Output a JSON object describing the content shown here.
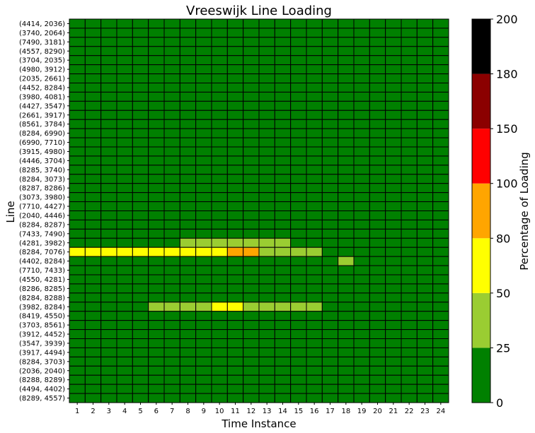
{
  "chart_data": {
    "type": "heatmap",
    "title": "Vreeswijk Line Loading",
    "xlabel": "Time Instance",
    "ylabel": "Line",
    "x_categories": [
      "1",
      "2",
      "3",
      "4",
      "5",
      "6",
      "7",
      "8",
      "9",
      "10",
      "11",
      "12",
      "13",
      "14",
      "15",
      "16",
      "17",
      "18",
      "19",
      "20",
      "21",
      "22",
      "23",
      "24"
    ],
    "y_categories": [
      "(4414, 2036)",
      "(3740, 2064)",
      "(7490, 3181)",
      "(4557, 8290)",
      "(3704, 2035)",
      "(4980, 3912)",
      "(2035, 2661)",
      "(4452, 8284)",
      "(3980, 4081)",
      "(4427, 3547)",
      "(2661, 3917)",
      "(8561, 3784)",
      "(8284, 6990)",
      "(6990, 7710)",
      "(3915, 4980)",
      "(4446, 3704)",
      "(8285, 3740)",
      "(8284, 3073)",
      "(8287, 8286)",
      "(3073, 3980)",
      "(7710, 4427)",
      "(2040, 4446)",
      "(8284, 8287)",
      "(7433, 7490)",
      "(4281, 3982)",
      "(8284, 7076)",
      "(4402, 8284)",
      "(7710, 7433)",
      "(4550, 4281)",
      "(8286, 8285)",
      "(8284, 8288)",
      "(3982, 8284)",
      "(8419, 4550)",
      "(3703, 8561)",
      "(3912, 4452)",
      "(3547, 3939)",
      "(3917, 4494)",
      "(8284, 3703)",
      "(2036, 2040)",
      "(8288, 8289)",
      "(4494, 4402)",
      "(8289, 4557)"
    ],
    "default_value": 10,
    "highlighted_cells": [
      {
        "line": "(4281, 3982)",
        "values": {
          "8": 35,
          "9": 35,
          "10": 35,
          "11": 35,
          "12": 35,
          "13": 35,
          "14": 35
        }
      },
      {
        "line": "(8284, 7076)",
        "values": {
          "1": 65,
          "2": 65,
          "3": 65,
          "4": 65,
          "5": 65,
          "6": 65,
          "7": 65,
          "8": 65,
          "9": 65,
          "10": 65,
          "11": 90,
          "12": 90,
          "13": 35,
          "14": 35,
          "15": 35,
          "16": 35
        }
      },
      {
        "line": "(4402, 8284)",
        "values": {
          "18": 35
        }
      },
      {
        "line": "(3982, 8284)",
        "values": {
          "6": 35,
          "7": 35,
          "8": 35,
          "9": 35,
          "10": 65,
          "11": 65,
          "12": 35,
          "13": 35,
          "14": 35,
          "15": 35,
          "16": 35
        }
      }
    ],
    "colorbar": {
      "label": "Percentage of Loading",
      "boundaries": [
        0,
        25,
        50,
        80,
        100,
        150,
        180,
        200
      ],
      "tick_labels": [
        "0",
        "25",
        "50",
        "80",
        "100",
        "150",
        "180",
        "200"
      ],
      "colors": [
        "#008000",
        "#9acd32",
        "#ffff00",
        "#ffa500",
        "#ff0000",
        "#8b0000",
        "#000000"
      ]
    },
    "grid": true,
    "cell_edge_color": "#000000"
  }
}
